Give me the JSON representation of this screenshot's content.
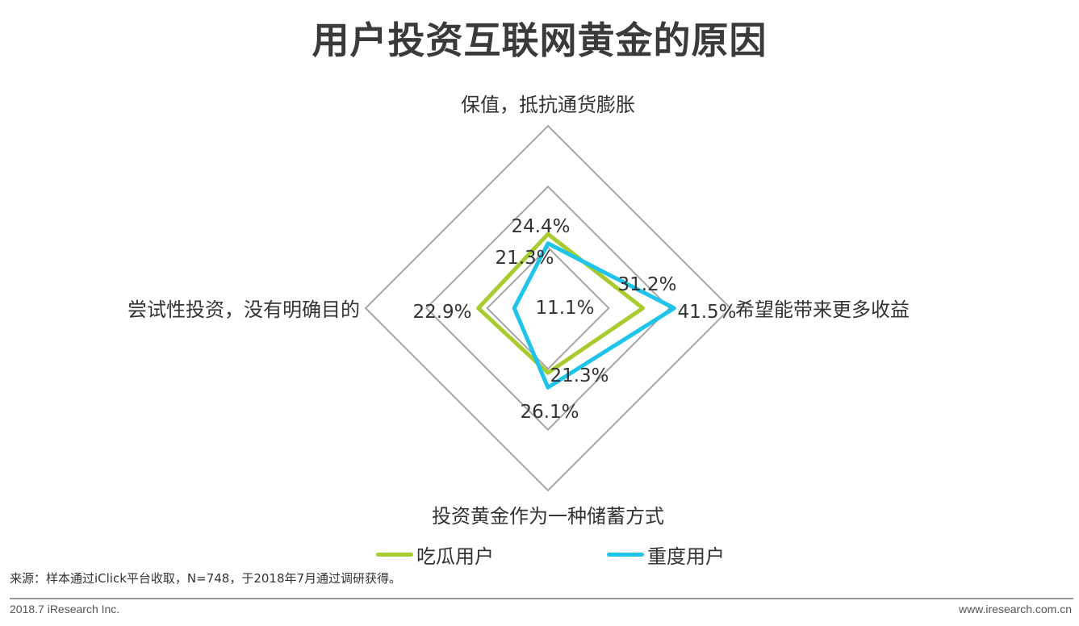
{
  "title": "用户投资互联网黄金的原因",
  "chart_data": {
    "type": "radar",
    "axes": [
      "保值，抵抗通货膨胀",
      "希望能带来更多收益",
      "投资黄金作为一种储蓄方式",
      "尝试性投资，没有明确目的"
    ],
    "rmax": 60,
    "grid_levels": [
      20,
      40,
      60
    ],
    "series": [
      {
        "name": "吃瓜用户",
        "color": "#a8cc2f",
        "values": [
          24.4,
          31.2,
          21.3,
          22.9
        ],
        "labels": [
          "24.4%",
          "31.2%",
          "21.3%",
          "22.9%"
        ]
      },
      {
        "name": "重度用户",
        "color": "#1ec4e9",
        "values": [
          21.3,
          41.5,
          26.1,
          11.1
        ],
        "labels": [
          "21.3%",
          "41.5%",
          "26.1%",
          "11.1%"
        ]
      }
    ],
    "legend_position": "bottom"
  },
  "source": "来源：样本通过iClick平台收取，N=748，于2018年7月通过调研获得。",
  "footer": {
    "left": "2018.7 iResearch Inc.",
    "right": "www.iresearch.com.cn"
  }
}
